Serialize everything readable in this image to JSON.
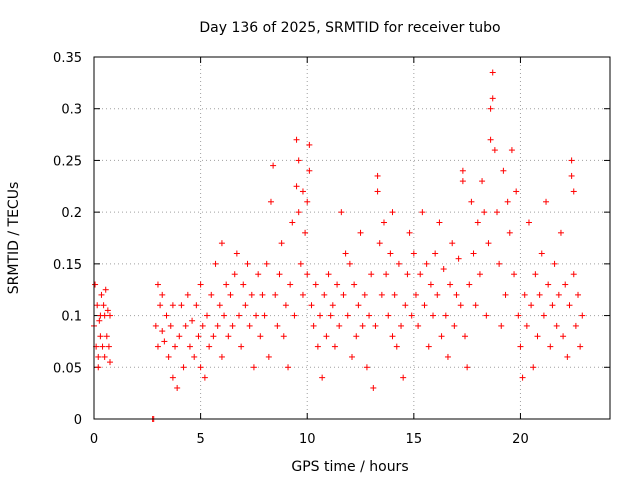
{
  "chart_data": {
    "type": "scatter",
    "title": "Day 136 of 2025, SRMTID for receiver tubo",
    "xlabel": "GPS time / hours",
    "ylabel": "SRMTID / TECUs",
    "xlim": [
      0,
      24.2
    ],
    "ylim": [
      0,
      0.35
    ],
    "xticks": [
      0,
      5,
      10,
      15,
      20
    ],
    "xtick_labels": [
      "0",
      "5",
      "10",
      "15",
      "20"
    ],
    "yticks": [
      0,
      0.05,
      0.1,
      0.15,
      0.2,
      0.25,
      0.3,
      0.35
    ],
    "ytick_labels": [
      "0",
      "0.05",
      "0.1",
      "0.15",
      "0.2",
      "0.25",
      "0.3",
      "0.35"
    ],
    "grid": true,
    "marker": "+",
    "color": "#ff0000",
    "series": [
      {
        "name": "SRMTID",
        "points": [
          [
            0.0,
            0.09
          ],
          [
            0.05,
            0.13
          ],
          [
            0.1,
            0.07
          ],
          [
            0.15,
            0.11
          ],
          [
            0.2,
            0.06
          ],
          [
            0.2,
            0.05
          ],
          [
            0.25,
            0.095
          ],
          [
            0.3,
            0.1
          ],
          [
            0.3,
            0.08
          ],
          [
            0.35,
            0.12
          ],
          [
            0.4,
            0.07
          ],
          [
            0.45,
            0.11
          ],
          [
            0.5,
            0.1
          ],
          [
            0.5,
            0.06
          ],
          [
            0.55,
            0.125
          ],
          [
            0.6,
            0.08
          ],
          [
            0.65,
            0.105
          ],
          [
            0.7,
            0.07
          ],
          [
            0.75,
            0.1
          ],
          [
            0.75,
            0.055
          ],
          [
            2.75,
            0.0
          ],
          [
            2.8,
            0.0
          ],
          [
            2.9,
            0.09
          ],
          [
            3.0,
            0.13
          ],
          [
            3.0,
            0.07
          ],
          [
            3.1,
            0.11
          ],
          [
            3.2,
            0.085
          ],
          [
            3.2,
            0.12
          ],
          [
            3.3,
            0.075
          ],
          [
            3.4,
            0.1
          ],
          [
            3.5,
            0.06
          ],
          [
            3.6,
            0.09
          ],
          [
            3.7,
            0.04
          ],
          [
            3.7,
            0.11
          ],
          [
            3.8,
            0.07
          ],
          [
            3.9,
            0.03
          ],
          [
            4.0,
            0.08
          ],
          [
            4.1,
            0.11
          ],
          [
            4.2,
            0.05
          ],
          [
            4.3,
            0.09
          ],
          [
            4.4,
            0.12
          ],
          [
            4.5,
            0.07
          ],
          [
            4.6,
            0.095
          ],
          [
            4.7,
            0.06
          ],
          [
            4.8,
            0.11
          ],
          [
            4.9,
            0.08
          ],
          [
            5.0,
            0.13
          ],
          [
            5.0,
            0.05
          ],
          [
            5.1,
            0.09
          ],
          [
            5.2,
            0.04
          ],
          [
            5.3,
            0.1
          ],
          [
            5.4,
            0.07
          ],
          [
            5.5,
            0.12
          ],
          [
            5.6,
            0.08
          ],
          [
            5.7,
            0.15
          ],
          [
            5.8,
            0.09
          ],
          [
            5.9,
            0.11
          ],
          [
            6.0,
            0.17
          ],
          [
            6.0,
            0.06
          ],
          [
            6.1,
            0.1
          ],
          [
            6.2,
            0.13
          ],
          [
            6.3,
            0.08
          ],
          [
            6.4,
            0.12
          ],
          [
            6.5,
            0.09
          ],
          [
            6.6,
            0.14
          ],
          [
            6.7,
            0.16
          ],
          [
            6.8,
            0.1
          ],
          [
            6.9,
            0.07
          ],
          [
            7.0,
            0.13
          ],
          [
            7.1,
            0.11
          ],
          [
            7.2,
            0.15
          ],
          [
            7.3,
            0.09
          ],
          [
            7.4,
            0.12
          ],
          [
            7.5,
            0.05
          ],
          [
            7.6,
            0.1
          ],
          [
            7.7,
            0.14
          ],
          [
            7.8,
            0.08
          ],
          [
            7.9,
            0.12
          ],
          [
            8.0,
            0.1
          ],
          [
            8.1,
            0.15
          ],
          [
            8.2,
            0.06
          ],
          [
            8.3,
            0.21
          ],
          [
            8.4,
            0.245
          ],
          [
            8.5,
            0.12
          ],
          [
            8.6,
            0.09
          ],
          [
            8.7,
            0.14
          ],
          [
            8.8,
            0.17
          ],
          [
            8.9,
            0.08
          ],
          [
            9.0,
            0.11
          ],
          [
            9.1,
            0.05
          ],
          [
            9.2,
            0.13
          ],
          [
            9.3,
            0.19
          ],
          [
            9.4,
            0.1
          ],
          [
            9.5,
            0.27
          ],
          [
            9.5,
            0.225
          ],
          [
            9.6,
            0.25
          ],
          [
            9.6,
            0.2
          ],
          [
            9.7,
            0.15
          ],
          [
            9.8,
            0.22
          ],
          [
            9.8,
            0.12
          ],
          [
            9.9,
            0.18
          ],
          [
            10.0,
            0.21
          ],
          [
            10.0,
            0.14
          ],
          [
            10.1,
            0.265
          ],
          [
            10.1,
            0.24
          ],
          [
            10.2,
            0.11
          ],
          [
            10.3,
            0.09
          ],
          [
            10.4,
            0.13
          ],
          [
            10.5,
            0.07
          ],
          [
            10.6,
            0.1
          ],
          [
            10.7,
            0.04
          ],
          [
            10.8,
            0.12
          ],
          [
            10.9,
            0.08
          ],
          [
            11.0,
            0.14
          ],
          [
            11.1,
            0.1
          ],
          [
            11.2,
            0.11
          ],
          [
            11.3,
            0.07
          ],
          [
            11.4,
            0.13
          ],
          [
            11.5,
            0.09
          ],
          [
            11.6,
            0.2
          ],
          [
            11.7,
            0.12
          ],
          [
            11.8,
            0.16
          ],
          [
            11.9,
            0.1
          ],
          [
            12.0,
            0.15
          ],
          [
            12.1,
            0.06
          ],
          [
            12.2,
            0.13
          ],
          [
            12.3,
            0.08
          ],
          [
            12.4,
            0.11
          ],
          [
            12.5,
            0.18
          ],
          [
            12.6,
            0.09
          ],
          [
            12.7,
            0.12
          ],
          [
            12.8,
            0.05
          ],
          [
            12.9,
            0.1
          ],
          [
            13.0,
            0.14
          ],
          [
            13.1,
            0.03
          ],
          [
            13.2,
            0.09
          ],
          [
            13.3,
            0.235
          ],
          [
            13.3,
            0.22
          ],
          [
            13.4,
            0.17
          ],
          [
            13.5,
            0.12
          ],
          [
            13.6,
            0.19
          ],
          [
            13.7,
            0.14
          ],
          [
            13.8,
            0.1
          ],
          [
            13.9,
            0.16
          ],
          [
            14.0,
            0.2
          ],
          [
            14.0,
            0.08
          ],
          [
            14.1,
            0.12
          ],
          [
            14.2,
            0.07
          ],
          [
            14.3,
            0.15
          ],
          [
            14.4,
            0.09
          ],
          [
            14.5,
            0.04
          ],
          [
            14.6,
            0.11
          ],
          [
            14.7,
            0.14
          ],
          [
            14.8,
            0.18
          ],
          [
            14.9,
            0.1
          ],
          [
            15.0,
            0.16
          ],
          [
            15.1,
            0.12
          ],
          [
            15.2,
            0.09
          ],
          [
            15.3,
            0.14
          ],
          [
            15.4,
            0.2
          ],
          [
            15.5,
            0.11
          ],
          [
            15.6,
            0.15
          ],
          [
            15.7,
            0.07
          ],
          [
            15.8,
            0.13
          ],
          [
            15.9,
            0.1
          ],
          [
            16.0,
            0.16
          ],
          [
            16.1,
            0.12
          ],
          [
            16.2,
            0.19
          ],
          [
            16.3,
            0.08
          ],
          [
            16.4,
            0.145
          ],
          [
            16.5,
            0.1
          ],
          [
            16.6,
            0.06
          ],
          [
            16.7,
            0.13
          ],
          [
            16.8,
            0.17
          ],
          [
            16.9,
            0.09
          ],
          [
            17.0,
            0.12
          ],
          [
            17.1,
            0.155
          ],
          [
            17.2,
            0.11
          ],
          [
            17.3,
            0.24
          ],
          [
            17.3,
            0.23
          ],
          [
            17.4,
            0.08
          ],
          [
            17.5,
            0.05
          ],
          [
            17.6,
            0.13
          ],
          [
            17.7,
            0.21
          ],
          [
            17.8,
            0.16
          ],
          [
            17.9,
            0.11
          ],
          [
            18.0,
            0.19
          ],
          [
            18.1,
            0.14
          ],
          [
            18.2,
            0.23
          ],
          [
            18.3,
            0.2
          ],
          [
            18.4,
            0.1
          ],
          [
            18.5,
            0.17
          ],
          [
            18.6,
            0.27
          ],
          [
            18.6,
            0.3
          ],
          [
            18.7,
            0.335
          ],
          [
            18.7,
            0.31
          ],
          [
            18.8,
            0.26
          ],
          [
            18.9,
            0.2
          ],
          [
            19.0,
            0.15
          ],
          [
            19.1,
            0.09
          ],
          [
            19.2,
            0.24
          ],
          [
            19.3,
            0.12
          ],
          [
            19.4,
            0.21
          ],
          [
            19.5,
            0.18
          ],
          [
            19.6,
            0.26
          ],
          [
            19.7,
            0.14
          ],
          [
            19.8,
            0.22
          ],
          [
            19.9,
            0.1
          ],
          [
            20.0,
            0.07
          ],
          [
            20.1,
            0.04
          ],
          [
            20.2,
            0.12
          ],
          [
            20.3,
            0.09
          ],
          [
            20.4,
            0.19
          ],
          [
            20.5,
            0.11
          ],
          [
            20.6,
            0.05
          ],
          [
            20.7,
            0.14
          ],
          [
            20.8,
            0.08
          ],
          [
            20.9,
            0.12
          ],
          [
            21.0,
            0.16
          ],
          [
            21.1,
            0.1
          ],
          [
            21.2,
            0.21
          ],
          [
            21.3,
            0.13
          ],
          [
            21.4,
            0.07
          ],
          [
            21.5,
            0.11
          ],
          [
            21.6,
            0.15
          ],
          [
            21.7,
            0.09
          ],
          [
            21.8,
            0.12
          ],
          [
            21.9,
            0.18
          ],
          [
            22.0,
            0.08
          ],
          [
            22.1,
            0.13
          ],
          [
            22.2,
            0.06
          ],
          [
            22.3,
            0.11
          ],
          [
            22.4,
            0.25
          ],
          [
            22.4,
            0.235
          ],
          [
            22.5,
            0.22
          ],
          [
            22.5,
            0.14
          ],
          [
            22.6,
            0.09
          ],
          [
            22.7,
            0.12
          ],
          [
            22.8,
            0.07
          ],
          [
            22.9,
            0.1
          ]
        ]
      }
    ]
  }
}
